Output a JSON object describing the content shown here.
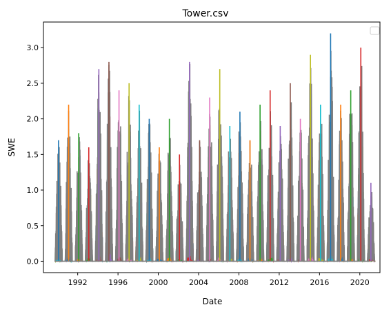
{
  "chart_data": {
    "type": "line",
    "title": "Tower.csv",
    "xlabel": "Date",
    "ylabel": "SWE",
    "xlim": [
      1988.6,
      2022.0
    ],
    "ylim": [
      -0.16,
      3.36
    ],
    "x_ticks": [
      1992,
      1996,
      2000,
      2004,
      2008,
      2012,
      2016,
      2020
    ],
    "x_tick_labels": [
      "1992",
      "1996",
      "2000",
      "2004",
      "2008",
      "2012",
      "2016",
      "2020"
    ],
    "y_ticks": [
      0.0,
      0.5,
      1.0,
      1.5,
      2.0,
      2.5,
      3.0
    ],
    "y_tick_labels": [
      "0.0",
      "0.5",
      "1.0",
      "1.5",
      "2.0",
      "2.5",
      "3.0"
    ],
    "legend": {
      "placement": "top-right",
      "entries": []
    },
    "grid": false,
    "seasonal_peaks": [
      {
        "year": 1990,
        "peak": 1.7
      },
      {
        "year": 1991,
        "peak": 2.2
      },
      {
        "year": 1992,
        "peak": 1.8
      },
      {
        "year": 1993,
        "peak": 1.6
      },
      {
        "year": 1994,
        "peak": 2.7
      },
      {
        "year": 1995,
        "peak": 2.8
      },
      {
        "year": 1996,
        "peak": 2.4
      },
      {
        "year": 1997,
        "peak": 2.5
      },
      {
        "year": 1998,
        "peak": 2.2
      },
      {
        "year": 1999,
        "peak": 2.0
      },
      {
        "year": 2000,
        "peak": 1.6
      },
      {
        "year": 2001,
        "peak": 2.0
      },
      {
        "year": 2002,
        "peak": 1.5
      },
      {
        "year": 2003,
        "peak": 2.8
      },
      {
        "year": 2004,
        "peak": 1.7
      },
      {
        "year": 2005,
        "peak": 2.3
      },
      {
        "year": 2006,
        "peak": 2.7
      },
      {
        "year": 2007,
        "peak": 1.9
      },
      {
        "year": 2008,
        "peak": 2.1
      },
      {
        "year": 2009,
        "peak": 1.7
      },
      {
        "year": 2010,
        "peak": 2.2
      },
      {
        "year": 2011,
        "peak": 2.4
      },
      {
        "year": 2012,
        "peak": 1.9
      },
      {
        "year": 2013,
        "peak": 2.5
      },
      {
        "year": 2014,
        "peak": 2.0
      },
      {
        "year": 2015,
        "peak": 2.9
      },
      {
        "year": 2016,
        "peak": 2.2
      },
      {
        "year": 2017,
        "peak": 3.2
      },
      {
        "year": 2018,
        "peak": 2.2
      },
      {
        "year": 2019,
        "peak": 2.4
      },
      {
        "year": 2020,
        "peak": 3.0
      },
      {
        "year": 2021,
        "peak": 1.1
      }
    ],
    "colors": [
      "#1f77b4",
      "#ff7f0e",
      "#2ca02c",
      "#d62728",
      "#9467bd",
      "#8c564b",
      "#e377c2",
      "#bcbd22",
      "#17becf",
      "#7f7f7f"
    ]
  }
}
